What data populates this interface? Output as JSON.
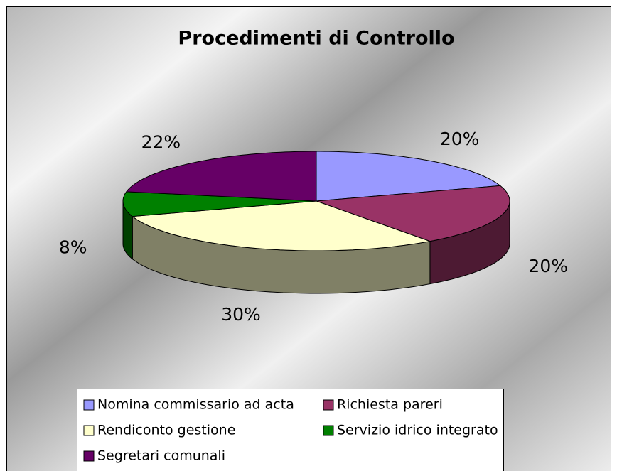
{
  "chart_data": {
    "type": "pie3d",
    "title": "Procedimenti di Controllo",
    "categories": [
      "Nomina commissario ad acta",
      "Richiesta pareri",
      "Rendiconto gestione",
      "Servizio idrico integrato",
      "Segretari comunali"
    ],
    "values": [
      20,
      20,
      30,
      8,
      22
    ],
    "value_labels": [
      "20%",
      "20%",
      "30%",
      "8%",
      "22%"
    ],
    "colors": [
      "#9999ff",
      "#993366",
      "#ffffcc",
      "#008000",
      "#660066"
    ],
    "legend": "bottom"
  }
}
